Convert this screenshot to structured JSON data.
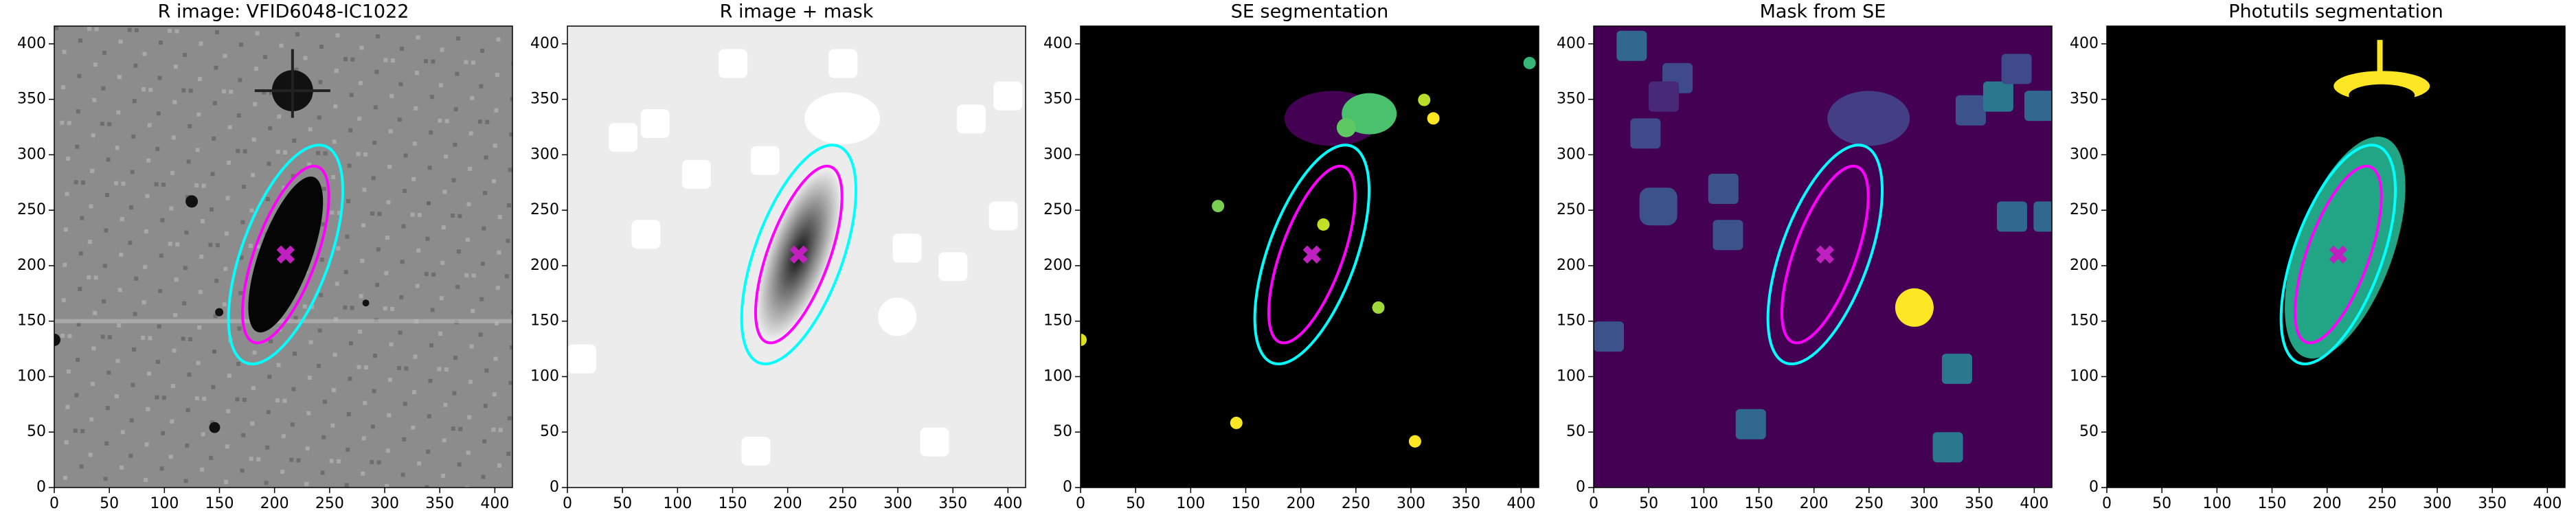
{
  "chart_data": [
    {
      "type": "image",
      "title": "R image: VFID6048-IC1022",
      "xlim": [
        0,
        416
      ],
      "ylim": [
        0,
        416
      ],
      "xticks": [
        0,
        50,
        100,
        150,
        200,
        250,
        300,
        350,
        400
      ],
      "yticks": [
        0,
        50,
        100,
        150,
        200,
        250,
        300,
        350,
        400
      ]
    },
    {
      "type": "image",
      "title": "R image + mask",
      "xlim": [
        0,
        416
      ],
      "ylim": [
        0,
        416
      ],
      "xticks": [
        0,
        50,
        100,
        150,
        200,
        250,
        300,
        350,
        400
      ],
      "yticks": [
        0,
        50,
        100,
        150,
        200,
        250,
        300,
        350,
        400
      ]
    },
    {
      "type": "image",
      "title": "SE segmentation",
      "xlim": [
        0,
        416
      ],
      "ylim": [
        0,
        416
      ],
      "xticks": [
        0,
        50,
        100,
        150,
        200,
        250,
        300,
        350,
        400
      ],
      "yticks": [
        0,
        50,
        100,
        150,
        200,
        250,
        300,
        350,
        400
      ]
    },
    {
      "type": "image",
      "title": "Mask from SE",
      "xlim": [
        0,
        416
      ],
      "ylim": [
        0,
        416
      ],
      "xticks": [
        0,
        50,
        100,
        150,
        200,
        250,
        300,
        350,
        400
      ],
      "yticks": [
        0,
        50,
        100,
        150,
        200,
        250,
        300,
        350,
        400
      ]
    },
    {
      "type": "image",
      "title": "Photutils segmentation",
      "xlim": [
        0,
        416
      ],
      "ylim": [
        0,
        416
      ],
      "xticks": [
        0,
        50,
        100,
        150,
        200,
        250,
        300,
        350,
        400
      ],
      "yticks": [
        0,
        50,
        100,
        150,
        200,
        250,
        300,
        350,
        400
      ]
    }
  ]
}
